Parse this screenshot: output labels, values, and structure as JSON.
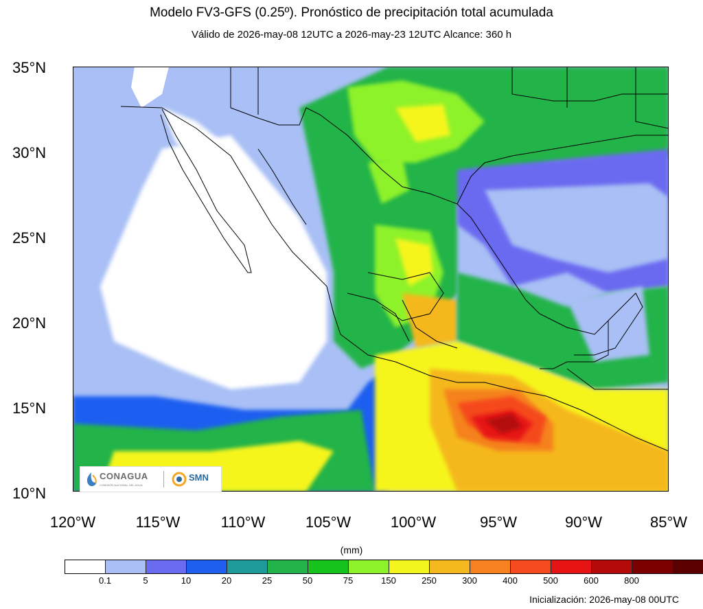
{
  "header": {
    "title": "Modelo FV3-GFS (0.25º). Pronóstico de precipitación total acumulada",
    "subtitle": "Válido de 2026-may-08 12UTC a 2026-may-23 12UTC    Alcance: 360 h"
  },
  "axes": {
    "lat_labels": [
      "35°N",
      "30°N",
      "25°N",
      "20°N",
      "15°N",
      "10°N"
    ],
    "lon_labels": [
      "120°W",
      "115°W",
      "110°W",
      "105°W",
      "100°W",
      "95°W",
      "90°W",
      "85°W"
    ],
    "lat_range": [
      10,
      35
    ],
    "lon_range": [
      -120,
      -85
    ]
  },
  "colorbar": {
    "unit": "(mm)",
    "tick_labels": [
      "0.1",
      "5",
      "10",
      "20",
      "25",
      "50",
      "75",
      "150",
      "250",
      "300",
      "400",
      "500",
      "600",
      "800"
    ],
    "colors": [
      "#ffffff",
      "#a9bff5",
      "#6b6bf0",
      "#1f5ff0",
      "#1f9a9a",
      "#22b34a",
      "#16c21e",
      "#8ef22a",
      "#f5f51e",
      "#f5b81e",
      "#f5821e",
      "#f54a1e",
      "#e61414",
      "#b40a0a",
      "#7a0000",
      "#5a0000"
    ]
  },
  "footer": {
    "init": "Inicialización: 2026-may-08 00UTC"
  },
  "logos": {
    "conagua": "CONAGUA",
    "conagua_sub": "COMISIÓN NACIONAL DEL AGUA",
    "smn": "SMN"
  }
}
